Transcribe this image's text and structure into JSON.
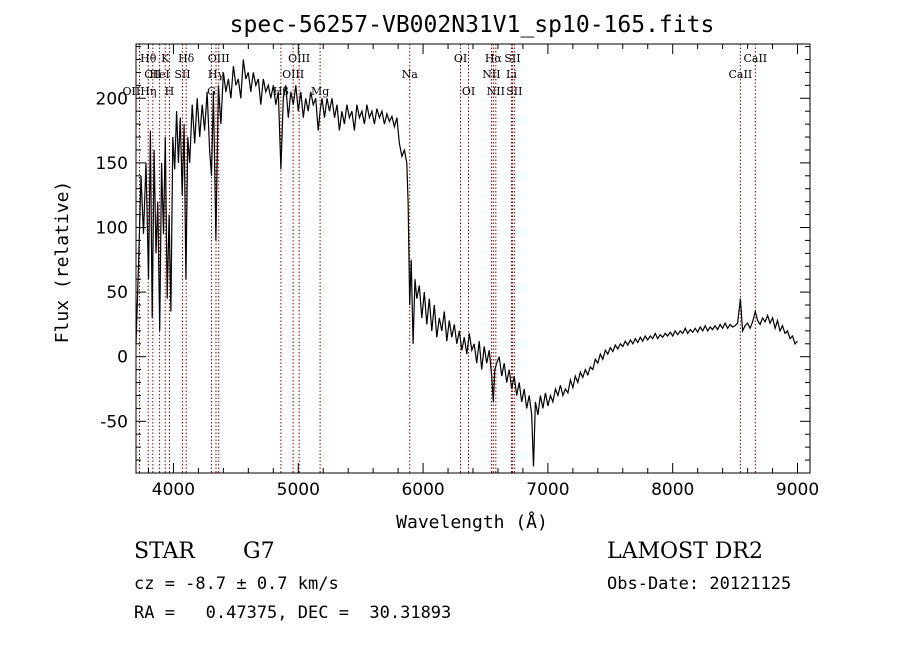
{
  "chart_data": {
    "type": "line",
    "title": "spec-56257-VB002N31V1_sp10-165.fits",
    "xlabel": "Wavelength (Å)",
    "ylabel": "Flux (relative)",
    "xlim": [
      3700,
      9100
    ],
    "ylim": [
      -90,
      242
    ],
    "xticks": [
      4000,
      5000,
      6000,
      7000,
      8000,
      9000
    ],
    "yticks": [
      -50,
      0,
      50,
      100,
      150,
      200
    ],
    "line_color": "#000000",
    "marker_color": "#8b0000",
    "grid": false,
    "series": [
      {
        "points": [
          [
            3700,
            10
          ],
          [
            3720,
            70
          ],
          [
            3740,
            140
          ],
          [
            3760,
            95
          ],
          [
            3780,
            150
          ],
          [
            3800,
            60
          ],
          [
            3815,
            175
          ],
          [
            3830,
            30
          ],
          [
            3845,
            160
          ],
          [
            3860,
            80
          ],
          [
            3875,
            120
          ],
          [
            3890,
            20
          ],
          [
            3905,
            150
          ],
          [
            3920,
            95
          ],
          [
            3935,
            170
          ],
          [
            3950,
            45
          ],
          [
            3965,
            110
          ],
          [
            3980,
            35
          ],
          [
            3995,
            170
          ],
          [
            4010,
            145
          ],
          [
            4025,
            190
          ],
          [
            4040,
            150
          ],
          [
            4055,
            185
          ],
          [
            4070,
            125
          ],
          [
            4085,
            180
          ],
          [
            4100,
            60
          ],
          [
            4115,
            170
          ],
          [
            4130,
            150
          ],
          [
            4150,
            195
          ],
          [
            4170,
            165
          ],
          [
            4190,
            200
          ],
          [
            4210,
            170
          ],
          [
            4230,
            195
          ],
          [
            4250,
            175
          ],
          [
            4270,
            205
          ],
          [
            4290,
            160
          ],
          [
            4305,
            140
          ],
          [
            4320,
            205
          ],
          [
            4340,
            90
          ],
          [
            4360,
            210
          ],
          [
            4380,
            180
          ],
          [
            4400,
            220
          ],
          [
            4420,
            205
          ],
          [
            4440,
            215
          ],
          [
            4460,
            200
          ],
          [
            4480,
            225
          ],
          [
            4500,
            210
          ],
          [
            4520,
            215
          ],
          [
            4540,
            200
          ],
          [
            4560,
            230
          ],
          [
            4580,
            215
          ],
          [
            4600,
            220
          ],
          [
            4620,
            205
          ],
          [
            4640,
            220
          ],
          [
            4660,
            210
          ],
          [
            4680,
            215
          ],
          [
            4700,
            195
          ],
          [
            4720,
            215
          ],
          [
            4740,
            205
          ],
          [
            4760,
            210
          ],
          [
            4780,
            200
          ],
          [
            4800,
            210
          ],
          [
            4820,
            195
          ],
          [
            4840,
            205
          ],
          [
            4861,
            145
          ],
          [
            4880,
            200
          ],
          [
            4900,
            210
          ],
          [
            4920,
            185
          ],
          [
            4940,
            205
          ],
          [
            4960,
            195
          ],
          [
            4980,
            210
          ],
          [
            5000,
            190
          ],
          [
            5020,
            205
          ],
          [
            5040,
            185
          ],
          [
            5060,
            200
          ],
          [
            5080,
            190
          ],
          [
            5100,
            205
          ],
          [
            5120,
            195
          ],
          [
            5140,
            200
          ],
          [
            5160,
            175
          ],
          [
            5175,
            190
          ],
          [
            5190,
            200
          ],
          [
            5210,
            185
          ],
          [
            5230,
            200
          ],
          [
            5250,
            190
          ],
          [
            5270,
            200
          ],
          [
            5290,
            185
          ],
          [
            5310,
            195
          ],
          [
            5330,
            175
          ],
          [
            5350,
            190
          ],
          [
            5370,
            180
          ],
          [
            5390,
            195
          ],
          [
            5410,
            185
          ],
          [
            5430,
            190
          ],
          [
            5450,
            175
          ],
          [
            5470,
            195
          ],
          [
            5490,
            185
          ],
          [
            5510,
            190
          ],
          [
            5530,
            180
          ],
          [
            5550,
            195
          ],
          [
            5570,
            185
          ],
          [
            5590,
            190
          ],
          [
            5610,
            180
          ],
          [
            5630,
            192
          ],
          [
            5650,
            185
          ],
          [
            5670,
            190
          ],
          [
            5690,
            180
          ],
          [
            5710,
            188
          ],
          [
            5730,
            182
          ],
          [
            5750,
            186
          ],
          [
            5770,
            178
          ],
          [
            5790,
            185
          ],
          [
            5810,
            165
          ],
          [
            5830,
            155
          ],
          [
            5850,
            160
          ],
          [
            5870,
            150
          ],
          [
            5880,
            120
          ],
          [
            5893,
            40
          ],
          [
            5905,
            75
          ],
          [
            5920,
            10
          ],
          [
            5935,
            60
          ],
          [
            5950,
            45
          ],
          [
            5970,
            55
          ],
          [
            5990,
            30
          ],
          [
            6010,
            50
          ],
          [
            6030,
            25
          ],
          [
            6050,
            45
          ],
          [
            6070,
            20
          ],
          [
            6090,
            40
          ],
          [
            6110,
            15
          ],
          [
            6130,
            30
          ],
          [
            6150,
            20
          ],
          [
            6170,
            35
          ],
          [
            6190,
            12
          ],
          [
            6210,
            28
          ],
          [
            6230,
            15
          ],
          [
            6250,
            25
          ],
          [
            6270,
            10
          ],
          [
            6290,
            20
          ],
          [
            6310,
            5
          ],
          [
            6330,
            15
          ],
          [
            6350,
            2
          ],
          [
            6370,
            18
          ],
          [
            6390,
            5
          ],
          [
            6410,
            10
          ],
          [
            6430,
            -5
          ],
          [
            6450,
            12
          ],
          [
            6470,
            -10
          ],
          [
            6490,
            8
          ],
          [
            6510,
            -5
          ],
          [
            6530,
            5
          ],
          [
            6550,
            -15
          ],
          [
            6563,
            -35
          ],
          [
            6575,
            -10
          ],
          [
            6590,
            -5
          ],
          [
            6610,
            0
          ],
          [
            6630,
            -15
          ],
          [
            6650,
            -5
          ],
          [
            6670,
            -20
          ],
          [
            6690,
            -10
          ],
          [
            6710,
            -25
          ],
          [
            6730,
            -15
          ],
          [
            6750,
            -30
          ],
          [
            6770,
            -20
          ],
          [
            6790,
            -35
          ],
          [
            6810,
            -25
          ],
          [
            6830,
            -40
          ],
          [
            6850,
            -30
          ],
          [
            6870,
            -45
          ],
          [
            6885,
            -85
          ],
          [
            6900,
            -35
          ],
          [
            6920,
            -45
          ],
          [
            6940,
            -30
          ],
          [
            6960,
            -40
          ],
          [
            6980,
            -28
          ],
          [
            7000,
            -38
          ],
          [
            7020,
            -30
          ],
          [
            7040,
            -35
          ],
          [
            7060,
            -25
          ],
          [
            7080,
            -30
          ],
          [
            7100,
            -22
          ],
          [
            7120,
            -30
          ],
          [
            7140,
            -25
          ],
          [
            7160,
            -28
          ],
          [
            7180,
            -18
          ],
          [
            7200,
            -24
          ],
          [
            7220,
            -15
          ],
          [
            7240,
            -20
          ],
          [
            7260,
            -12
          ],
          [
            7280,
            -16
          ],
          [
            7300,
            -10
          ],
          [
            7320,
            -14
          ],
          [
            7340,
            -8
          ],
          [
            7360,
            -10
          ],
          [
            7380,
            -2
          ],
          [
            7400,
            -5
          ],
          [
            7420,
            2
          ],
          [
            7440,
            -2
          ],
          [
            7460,
            5
          ],
          [
            7480,
            2
          ],
          [
            7500,
            7
          ],
          [
            7520,
            4
          ],
          [
            7540,
            9
          ],
          [
            7560,
            6
          ],
          [
            7580,
            10
          ],
          [
            7600,
            8
          ],
          [
            7620,
            12
          ],
          [
            7640,
            9
          ],
          [
            7660,
            13
          ],
          [
            7680,
            10
          ],
          [
            7700,
            14
          ],
          [
            7720,
            11
          ],
          [
            7740,
            15
          ],
          [
            7760,
            12
          ],
          [
            7780,
            16
          ],
          [
            7800,
            13
          ],
          [
            7820,
            16
          ],
          [
            7840,
            14
          ],
          [
            7860,
            18
          ],
          [
            7880,
            14
          ],
          [
            7900,
            17
          ],
          [
            7920,
            15
          ],
          [
            7940,
            18
          ],
          [
            7960,
            16
          ],
          [
            7980,
            19
          ],
          [
            8000,
            16
          ],
          [
            8020,
            20
          ],
          [
            8040,
            17
          ],
          [
            8060,
            20
          ],
          [
            8080,
            18
          ],
          [
            8100,
            22
          ],
          [
            8120,
            18
          ],
          [
            8140,
            21
          ],
          [
            8160,
            19
          ],
          [
            8180,
            22
          ],
          [
            8200,
            19
          ],
          [
            8220,
            23
          ],
          [
            8240,
            20
          ],
          [
            8260,
            24
          ],
          [
            8280,
            20
          ],
          [
            8300,
            23
          ],
          [
            8320,
            21
          ],
          [
            8340,
            24
          ],
          [
            8360,
            21
          ],
          [
            8380,
            25
          ],
          [
            8400,
            22
          ],
          [
            8420,
            26
          ],
          [
            8440,
            22
          ],
          [
            8460,
            25
          ],
          [
            8480,
            23
          ],
          [
            8500,
            24
          ],
          [
            8520,
            26
          ],
          [
            8542,
            45
          ],
          [
            8560,
            20
          ],
          [
            8580,
            24
          ],
          [
            8600,
            26
          ],
          [
            8620,
            22
          ],
          [
            8640,
            27
          ],
          [
            8662,
            35
          ],
          [
            8680,
            28
          ],
          [
            8700,
            25
          ],
          [
            8720,
            30
          ],
          [
            8740,
            27
          ],
          [
            8760,
            32
          ],
          [
            8780,
            26
          ],
          [
            8800,
            30
          ],
          [
            8820,
            22
          ],
          [
            8840,
            28
          ],
          [
            8860,
            20
          ],
          [
            8880,
            24
          ],
          [
            8900,
            18
          ],
          [
            8920,
            20
          ],
          [
            8940,
            14
          ],
          [
            8960,
            16
          ],
          [
            8980,
            10
          ],
          [
            9000,
            12
          ]
        ]
      }
    ],
    "line_markers": [
      {
        "label": "Hθ",
        "x": 3798,
        "row": 1
      },
      {
        "label": "CII",
        "x": 3835,
        "row": 2
      },
      {
        "label": "OIIHη",
        "x": 3728,
        "row": 3
      },
      {
        "label": "K",
        "x": 3934,
        "row": 1
      },
      {
        "label": "HeI",
        "x": 3889,
        "row": 2
      },
      {
        "label": "H",
        "x": 3968,
        "row": 3
      },
      {
        "label": "Hδ",
        "x": 4102,
        "row": 1
      },
      {
        "label": "SII",
        "x": 4072,
        "row": 2
      },
      {
        "label": "OIII",
        "x": 4363,
        "row": 1
      },
      {
        "label": "Hγ",
        "x": 4341,
        "row": 2
      },
      {
        "label": "G",
        "x": 4305,
        "row": 3
      },
      {
        "label": "OIII",
        "x": 5007,
        "row": 1
      },
      {
        "label": "OIII",
        "x": 4959,
        "row": 2
      },
      {
        "label": "Hβ",
        "x": 4861,
        "row": 3
      },
      {
        "label": "Mg",
        "x": 5175,
        "row": 3
      },
      {
        "label": "Na",
        "x": 5893,
        "row": 2
      },
      {
        "label": "OI",
        "x": 6300,
        "row": 1
      },
      {
        "label": "OI",
        "x": 6364,
        "row": 3
      },
      {
        "label": "Hα",
        "x": 6563,
        "row": 1
      },
      {
        "label": "SII",
        "x": 6716,
        "row": 1
      },
      {
        "label": "NII",
        "x": 6548,
        "row": 2
      },
      {
        "label": "Li",
        "x": 6708,
        "row": 2
      },
      {
        "label": "NII",
        "x": 6583,
        "row": 3
      },
      {
        "label": "SII",
        "x": 6731,
        "row": 3
      },
      {
        "label": "CaII",
        "x": 8662,
        "row": 1
      },
      {
        "label": "CaII",
        "x": 8542,
        "row": 2
      }
    ]
  },
  "info": {
    "object_class": "STAR",
    "subclass": "G7",
    "cz": "cz = -8.7 ± 0.7 km/s",
    "coords": "RA =   0.47375, DEC =  30.31893",
    "survey": "LAMOST DR2",
    "obs_date": "Obs-Date: 20121125"
  }
}
